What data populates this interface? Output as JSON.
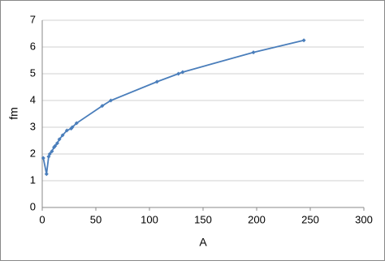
{
  "chart_data": {
    "type": "line",
    "xlabel": "A",
    "ylabel": "fm",
    "x": [
      1,
      4,
      6,
      7,
      9,
      11,
      12,
      14,
      16,
      19,
      23,
      27,
      28,
      32,
      56,
      64,
      107,
      127,
      131,
      197,
      244
    ],
    "values": [
      1.85,
      1.25,
      1.9,
      2.0,
      2.1,
      2.25,
      2.3,
      2.4,
      2.55,
      2.7,
      2.88,
      2.95,
      3.0,
      3.15,
      3.8,
      4.0,
      4.7,
      5.0,
      5.06,
      5.8,
      6.25
    ],
    "color": "#4a7ebb",
    "xlim": [
      0,
      300
    ],
    "xticks": [
      0,
      50,
      100,
      150,
      200,
      250,
      300
    ],
    "ylim": [
      0,
      7
    ],
    "yticks": [
      0,
      1,
      2,
      3,
      4,
      5,
      6,
      7
    ],
    "grid": true
  }
}
